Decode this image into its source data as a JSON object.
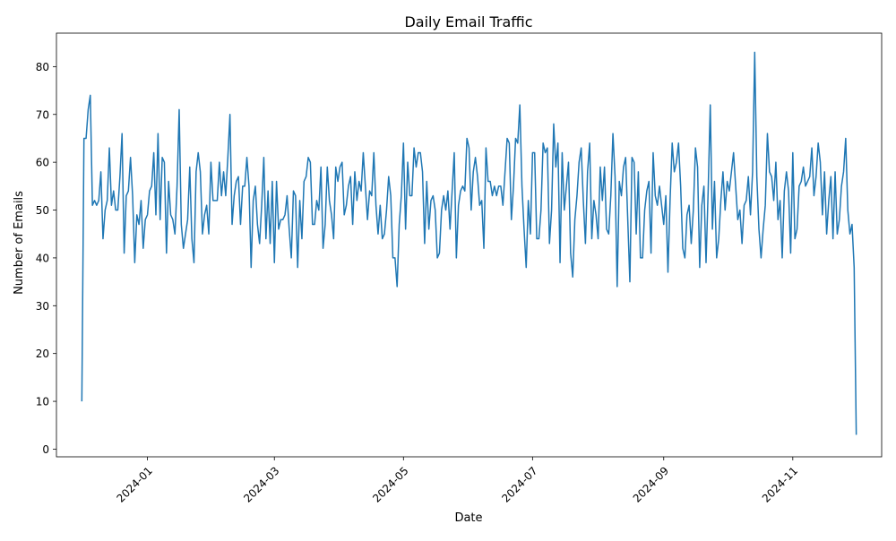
{
  "chart_data": {
    "type": "line",
    "title": "Daily Email Traffic",
    "xlabel": "Date",
    "ylabel": "Number of Emails",
    "ylim": [
      -1.6,
      87.0
    ],
    "xlim": [
      "2023-11-19",
      "2024-12-13"
    ],
    "x_ticks": [
      "2024-01-01",
      "2024-03-01",
      "2024-05-01",
      "2024-07-01",
      "2024-09-01",
      "2024-11-01"
    ],
    "x_tick_labels": [
      "2024-01",
      "2024-03",
      "2024-05",
      "2024-07",
      "2024-09",
      "2024-11"
    ],
    "y_ticks": [
      0,
      10,
      20,
      30,
      40,
      50,
      60,
      70,
      80
    ],
    "y_tick_labels": [
      "0",
      "10",
      "20",
      "30",
      "40",
      "50",
      "60",
      "70",
      "80"
    ],
    "grid": false,
    "line_color": "#1f77b4",
    "x_start": "2023-12-01",
    "x_end": "2024-12-01",
    "series": [
      {
        "values": [
          10,
          65,
          65,
          71,
          74,
          51,
          52,
          51,
          52,
          58,
          44,
          50,
          52,
          63,
          51,
          54,
          50,
          50,
          57,
          66,
          41,
          53,
          54,
          61,
          53,
          39,
          49,
          47,
          52,
          42,
          48,
          49,
          54,
          55,
          62,
          49,
          66,
          48,
          61,
          60,
          41,
          56,
          49,
          48,
          45,
          55,
          71,
          47,
          42,
          45,
          48,
          59,
          44,
          39,
          58,
          62,
          58,
          45,
          49,
          51,
          45,
          60,
          52,
          52,
          52,
          60,
          53,
          58,
          53,
          61,
          70,
          47,
          53,
          56,
          57,
          47,
          55,
          55,
          61,
          55,
          38,
          52,
          55,
          47,
          43,
          51,
          61,
          44,
          54,
          43,
          56,
          39,
          56,
          46,
          48,
          48,
          49,
          53,
          46,
          40,
          54,
          53,
          38,
          52,
          44,
          56,
          57,
          61,
          60,
          47,
          47,
          52,
          50,
          59,
          42,
          47,
          59,
          52,
          49,
          44,
          59,
          56,
          59,
          60,
          49,
          51,
          55,
          57,
          47,
          58,
          52,
          56,
          54,
          62,
          55,
          48,
          54,
          53,
          62,
          51,
          45,
          51,
          44,
          45,
          50,
          57,
          53,
          40,
          40,
          34,
          47,
          53,
          64,
          46,
          60,
          53,
          53,
          63,
          59,
          62,
          62,
          58,
          43,
          56,
          46,
          52,
          53,
          50,
          40,
          41,
          50,
          53,
          50,
          54,
          46,
          54,
          62,
          40,
          51,
          54,
          55,
          54,
          65,
          63,
          50,
          58,
          61,
          57,
          51,
          52,
          42,
          63,
          56,
          56,
          53,
          55,
          53,
          55,
          55,
          51,
          58,
          65,
          64,
          48,
          55,
          65,
          64,
          72,
          55,
          46,
          38,
          52,
          45,
          62,
          62,
          44,
          44,
          50,
          64,
          62,
          63,
          43,
          50,
          68,
          59,
          64,
          39,
          62,
          50,
          55,
          60,
          41,
          36,
          48,
          53,
          60,
          63,
          52,
          43,
          58,
          64,
          44,
          52,
          49,
          44,
          59,
          52,
          59,
          46,
          45,
          53,
          66,
          57,
          34,
          56,
          53,
          59,
          61,
          48,
          35,
          61,
          60,
          45,
          58,
          40,
          40,
          50,
          54,
          56,
          41,
          62,
          53,
          51,
          55,
          51,
          47,
          53,
          37,
          52,
          64,
          58,
          60,
          64,
          55,
          42,
          40,
          49,
          51,
          43,
          50,
          63,
          59,
          38,
          51,
          55,
          39,
          54,
          72,
          46,
          56,
          40,
          44,
          52,
          58,
          50,
          56,
          54,
          58,
          62,
          55,
          48,
          50,
          43,
          51,
          52,
          57,
          49,
          58,
          83,
          57,
          46,
          40,
          46,
          51,
          66,
          58,
          57,
          52,
          60,
          48,
          52,
          40,
          54,
          58,
          54,
          41,
          62,
          44,
          46,
          55,
          56,
          59,
          55,
          56,
          57,
          63,
          53,
          57,
          64,
          60,
          49,
          58,
          45,
          52,
          57,
          44,
          58,
          45,
          48,
          55,
          58,
          65,
          50,
          45,
          47,
          38,
          3
        ]
      }
    ]
  }
}
